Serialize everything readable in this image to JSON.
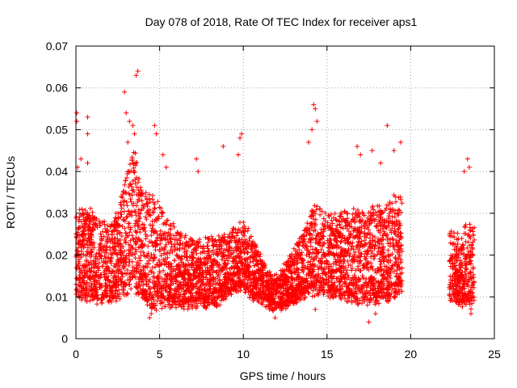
{
  "chart_data": {
    "type": "scatter",
    "title": "Day 078 of 2018, Rate Of TEC Index for receiver aps1",
    "xlabel": "GPS time / hours",
    "ylabel": "ROTI / TECUs",
    "xlim": [
      0,
      25
    ],
    "ylim": [
      0,
      0.07
    ],
    "x_ticks": [
      0,
      5,
      10,
      15,
      20,
      25
    ],
    "x_tick_labels": [
      "0",
      "5",
      "10",
      "15",
      "20",
      "25"
    ],
    "y_ticks": [
      0,
      0.01,
      0.02,
      0.03,
      0.04,
      0.05,
      0.06,
      0.07
    ],
    "y_tick_labels": [
      "0",
      "0.01",
      "0.02",
      "0.03",
      "0.04",
      "0.05",
      "0.06",
      "0.07"
    ],
    "grid": true,
    "marker": "+",
    "marker_color": "#ff0000",
    "series": [
      {
        "segments": [
          {
            "x_range": [
              0,
              19.5
            ],
            "note_envelope": [
              [
                0.0,
                0.01,
                0.03
              ],
              [
                0.5,
                0.01,
                0.031
              ],
              [
                1.0,
                0.009,
                0.03
              ],
              [
                1.5,
                0.009,
                0.028
              ],
              [
                2.0,
                0.009,
                0.027
              ],
              [
                2.5,
                0.01,
                0.03
              ],
              [
                3.0,
                0.011,
                0.04
              ],
              [
                3.5,
                0.012,
                0.045
              ],
              [
                4.0,
                0.01,
                0.035
              ],
              [
                4.5,
                0.007,
                0.034
              ],
              [
                5.0,
                0.008,
                0.032
              ],
              [
                5.5,
                0.008,
                0.028
              ],
              [
                6.0,
                0.008,
                0.026
              ],
              [
                6.5,
                0.008,
                0.024
              ],
              [
                7.0,
                0.008,
                0.024
              ],
              [
                7.5,
                0.008,
                0.024
              ],
              [
                8.0,
                0.008,
                0.024
              ],
              [
                8.5,
                0.008,
                0.025
              ],
              [
                9.0,
                0.01,
                0.025
              ],
              [
                9.5,
                0.012,
                0.026
              ],
              [
                10.0,
                0.012,
                0.028
              ],
              [
                10.5,
                0.01,
                0.024
              ],
              [
                11.0,
                0.009,
                0.02
              ],
              [
                11.5,
                0.008,
                0.016
              ],
              [
                12.0,
                0.007,
                0.015
              ],
              [
                12.5,
                0.008,
                0.018
              ],
              [
                13.0,
                0.009,
                0.022
              ],
              [
                13.5,
                0.01,
                0.025
              ],
              [
                14.0,
                0.011,
                0.03
              ],
              [
                14.5,
                0.011,
                0.032
              ],
              [
                15.0,
                0.011,
                0.03
              ],
              [
                15.5,
                0.01,
                0.03
              ],
              [
                16.0,
                0.01,
                0.03
              ],
              [
                16.5,
                0.009,
                0.03
              ],
              [
                17.0,
                0.009,
                0.031
              ],
              [
                17.5,
                0.009,
                0.031
              ],
              [
                18.0,
                0.009,
                0.032
              ],
              [
                18.5,
                0.009,
                0.032
              ],
              [
                19.0,
                0.01,
                0.034
              ],
              [
                19.5,
                0.012,
                0.034
              ]
            ]
          },
          {
            "x_range": [
              22.3,
              23.8
            ],
            "note_envelope": [
              [
                22.3,
                0.01,
                0.026
              ],
              [
                22.8,
                0.009,
                0.025
              ],
              [
                23.3,
                0.008,
                0.028
              ],
              [
                23.8,
                0.008,
                0.026
              ]
            ]
          }
        ],
        "outliers": [
          [
            0.05,
            0.054
          ],
          [
            0.05,
            0.052
          ],
          [
            0.1,
            0.041
          ],
          [
            0.7,
            0.053
          ],
          [
            0.7,
            0.049
          ],
          [
            0.7,
            0.042
          ],
          [
            0.3,
            0.043
          ],
          [
            2.9,
            0.059
          ],
          [
            3.0,
            0.054
          ],
          [
            3.2,
            0.052
          ],
          [
            3.4,
            0.051
          ],
          [
            3.6,
            0.063
          ],
          [
            3.7,
            0.064
          ],
          [
            3.5,
            0.049
          ],
          [
            3.1,
            0.047
          ],
          [
            4.7,
            0.051
          ],
          [
            4.8,
            0.049
          ],
          [
            5.2,
            0.044
          ],
          [
            5.4,
            0.041
          ],
          [
            7.2,
            0.043
          ],
          [
            7.3,
            0.04
          ],
          [
            8.8,
            0.046
          ],
          [
            9.8,
            0.048
          ],
          [
            9.9,
            0.049
          ],
          [
            9.7,
            0.044
          ],
          [
            14.2,
            0.056
          ],
          [
            14.3,
            0.055
          ],
          [
            14.1,
            0.05
          ],
          [
            14.4,
            0.052
          ],
          [
            13.9,
            0.047
          ],
          [
            16.8,
            0.046
          ],
          [
            17.0,
            0.044
          ],
          [
            17.7,
            0.045
          ],
          [
            18.6,
            0.051
          ],
          [
            19.0,
            0.045
          ],
          [
            19.4,
            0.047
          ],
          [
            18.2,
            0.042
          ],
          [
            23.4,
            0.043
          ],
          [
            23.5,
            0.041
          ],
          [
            23.2,
            0.04
          ],
          [
            4.4,
            0.005
          ],
          [
            4.5,
            0.006
          ],
          [
            11.9,
            0.005
          ],
          [
            14.3,
            0.007
          ],
          [
            17.5,
            0.004
          ],
          [
            23.6,
            0.006
          ],
          [
            17.9,
            0.006
          ]
        ]
      }
    ]
  }
}
